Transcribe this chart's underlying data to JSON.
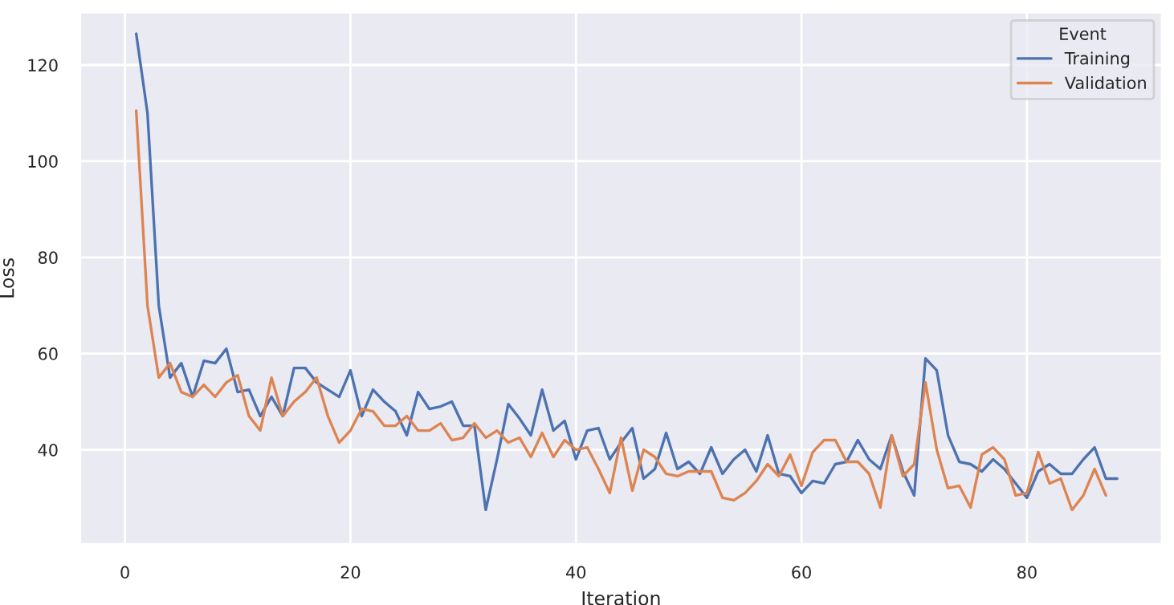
{
  "chart_data": {
    "type": "line",
    "xlabel": "Iteration",
    "ylabel": "Loss",
    "legend_title": "Event",
    "legend": "top right",
    "grid": true,
    "line_style": "solid",
    "marker": "none",
    "x": [
      1,
      2,
      3,
      4,
      5,
      6,
      7,
      8,
      9,
      10,
      11,
      12,
      13,
      14,
      15,
      16,
      17,
      18,
      19,
      20,
      21,
      22,
      23,
      24,
      25,
      26,
      27,
      28,
      29,
      30,
      31,
      32,
      33,
      34,
      35,
      36,
      37,
      38,
      39,
      40,
      41,
      42,
      43,
      44,
      45,
      46,
      47,
      48,
      49,
      50,
      51,
      52,
      53,
      54,
      55,
      56,
      57,
      58,
      59,
      60,
      61,
      62,
      63,
      64,
      65,
      66,
      67,
      68,
      69,
      70,
      71,
      72,
      73,
      74,
      75,
      76,
      77,
      78,
      79,
      80,
      81,
      82,
      83,
      84,
      85,
      86,
      87,
      88
    ],
    "xlim": [
      -4,
      92
    ],
    "ylim": [
      20.3,
      131
    ],
    "xticks": [
      0,
      20,
      40,
      60,
      80
    ],
    "yticks": [
      40,
      60,
      80,
      100,
      120
    ],
    "series": [
      {
        "name": "Training",
        "color": "#4c72b0",
        "values": [
          126.5,
          110,
          70,
          55,
          58,
          51,
          58.5,
          58,
          61,
          52,
          52.5,
          47,
          51,
          47,
          57,
          57,
          54,
          52.5,
          51,
          56.5,
          47,
          52.5,
          50,
          48,
          43,
          52,
          48.5,
          49,
          50,
          45,
          45,
          27.5,
          38,
          49.5,
          46.5,
          43,
          52.5,
          44,
          46,
          38,
          44,
          44.5,
          38,
          41.5,
          44.5,
          34,
          36,
          43.5,
          36,
          37.5,
          35,
          40.5,
          35,
          38,
          40,
          35.5,
          43,
          35,
          34.5,
          31,
          33.5,
          33,
          37,
          37.5,
          42,
          38,
          36,
          43,
          35.5,
          30.5,
          59,
          56.5,
          43,
          37.5,
          37,
          35.5,
          38,
          36,
          33,
          30,
          35.5,
          37,
          35,
          35,
          38,
          40.5,
          34,
          34
        ]
      },
      {
        "name": "Validation",
        "color": "#dd8452",
        "values": [
          110.5,
          70,
          55,
          58,
          52,
          51,
          53.5,
          51,
          54,
          55.5,
          47,
          44,
          55,
          47,
          50,
          52,
          55,
          47,
          41.5,
          44,
          48.5,
          48,
          45,
          45,
          47,
          44,
          44,
          45.5,
          42,
          42.5,
          45.5,
          42.5,
          44,
          41.5,
          42.5,
          38.5,
          43.5,
          38.5,
          42,
          40,
          40.5,
          36,
          31,
          42.5,
          31.5,
          40,
          38.5,
          35,
          34.5,
          35.5,
          35.5,
          35.5,
          30,
          29.5,
          31,
          33.5,
          37,
          34.5,
          39,
          32.5,
          39.5,
          42,
          42,
          37.5,
          37.5,
          35,
          28,
          43,
          34.5,
          37,
          54,
          40,
          32,
          32.5,
          28,
          39,
          40.5,
          38,
          30.5,
          31,
          39.5,
          33,
          34,
          27.5,
          30.5,
          36,
          30.5,
          null
        ]
      }
    ]
  }
}
